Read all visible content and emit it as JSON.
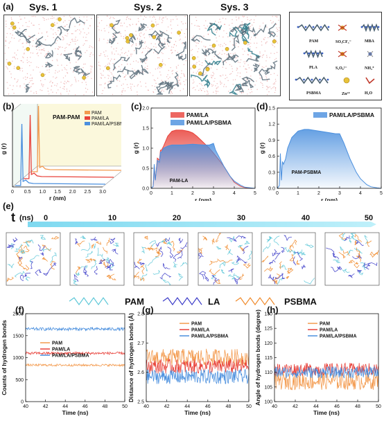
{
  "panels": {
    "a": {
      "label": "(a)",
      "systems": [
        "Sys. 1",
        "Sys. 2",
        "Sys. 3"
      ],
      "legend_items": [
        "PAM",
        "SO₃CF₃⁻",
        "MBA",
        "PLA",
        "S₂O₈²⁻",
        "NH₄⁺",
        "PSBMA",
        "Zn²⁺",
        "H₂O"
      ]
    },
    "b": {
      "label": "(b)",
      "title": "PAM-PAM",
      "legend": [
        "PAM",
        "PAM/LA",
        "PAM/LA/PSBMA"
      ],
      "xlabel": "r (nm)",
      "ylabel": "g (r)",
      "xticks": [
        "0",
        "0.5",
        "1.0",
        "1.5",
        "2.0",
        "2.5",
        "3.0"
      ]
    },
    "c": {
      "label": "(c)",
      "annotation": "PAM-LA",
      "legend": [
        "PAM/LA",
        "PAM/LA/PSBMA"
      ],
      "xlabel": "r (nm)",
      "ylabel": "g (r)"
    },
    "d": {
      "label": "(d)",
      "annotation": "PAM-PSBMA",
      "legend": [
        "PAM/LA/PSBMA"
      ],
      "xlabel": "r (nm)",
      "ylabel": "g (r)"
    },
    "e": {
      "label": "(e)",
      "t_label": "t",
      "t_unit": "(ns)",
      "times": [
        "0",
        "10",
        "20",
        "30",
        "40",
        "50"
      ],
      "legend": [
        "PAM",
        "LA",
        "PSBMA"
      ]
    },
    "f": {
      "label": "(f)",
      "legend": [
        "PAM",
        "PAM/LA",
        "PAM/LA/PSBMA"
      ],
      "xlabel": "Time (ns)",
      "ylabel": "Counts of hydrogen bonds"
    },
    "g": {
      "label": "(g)",
      "legend": [
        "PAM",
        "PAM/LA",
        "PAM/LA/PSBMA"
      ],
      "xlabel": "Time (ns)",
      "ylabel": "Distance of hydrogen bonds (Å)"
    },
    "h": {
      "label": "(h)",
      "legend": [
        "PAM",
        "PAM/LA",
        "PAM/LA/PSBMA"
      ],
      "xlabel": "Time (ns)",
      "ylabel": "Angle of hydrogen bonds (degree)"
    }
  },
  "colors": {
    "PAM": "#f39a4e",
    "PAM/LA": "#e8413a",
    "PAM/LA/PSBMA": "#4a8fde",
    "LA": "#3b3bc8",
    "PSBMA": "#f08a2a",
    "water": "#e89a9a"
  },
  "chart_data": [
    {
      "id": "c",
      "type": "area",
      "xlim": [
        0,
        5
      ],
      "ylim": [
        0,
        2.0
      ],
      "xticks": [
        0,
        1,
        2,
        3,
        4,
        5
      ],
      "yticks": [
        0.0,
        0.5,
        1.0,
        1.5,
        2.0
      ],
      "series": [
        {
          "name": "PAM/LA",
          "x": [
            0.0,
            0.1,
            0.15,
            0.2,
            0.3,
            0.4,
            0.45,
            0.5,
            0.6,
            0.8,
            1.0,
            1.2,
            1.5,
            1.8,
            2.0,
            2.2,
            2.4,
            2.6,
            2.8,
            3.0,
            3.2,
            3.5,
            3.8,
            4.0,
            4.3,
            4.5,
            4.8,
            5.0
          ],
          "values": [
            0.0,
            0.05,
            0.55,
            0.2,
            0.75,
            0.7,
            0.95,
            0.95,
            1.05,
            1.3,
            1.42,
            1.45,
            1.45,
            1.42,
            1.38,
            1.3,
            1.2,
            1.1,
            1.0,
            0.88,
            0.75,
            0.55,
            0.3,
            0.15,
            0.05,
            0.02,
            0.0,
            0.0
          ]
        },
        {
          "name": "PAM/LA/PSBMA",
          "x": [
            0.0,
            0.1,
            0.15,
            0.2,
            0.3,
            0.4,
            0.45,
            0.5,
            0.6,
            0.8,
            1.0,
            1.5,
            2.0,
            2.5,
            2.8,
            3.0,
            3.1,
            3.3,
            3.5,
            3.8,
            4.0,
            4.3,
            4.5,
            4.8,
            5.0
          ],
          "values": [
            0.0,
            0.05,
            0.6,
            0.2,
            0.7,
            0.65,
            0.9,
            0.9,
            1.0,
            1.05,
            1.08,
            1.08,
            1.1,
            1.08,
            1.08,
            1.12,
            0.95,
            0.75,
            0.55,
            0.3,
            0.18,
            0.08,
            0.03,
            0.01,
            0.0
          ]
        }
      ]
    },
    {
      "id": "d",
      "type": "area",
      "xlim": [
        0,
        5
      ],
      "ylim": [
        0,
        1.5
      ],
      "xticks": [
        0,
        1,
        2,
        3,
        4,
        5
      ],
      "yticks": [
        0.0,
        0.3,
        0.6,
        0.9,
        1.2,
        1.5
      ],
      "series": [
        {
          "name": "PAM/LA/PSBMA",
          "x": [
            0.0,
            0.1,
            0.15,
            0.2,
            0.25,
            0.3,
            0.4,
            0.5,
            0.7,
            1.0,
            1.3,
            1.5,
            2.0,
            2.5,
            2.8,
            3.0,
            3.2,
            3.5,
            3.8,
            4.0,
            4.3,
            4.5,
            4.8,
            5.0
          ],
          "values": [
            0.0,
            0.05,
            0.65,
            0.15,
            0.5,
            0.45,
            0.55,
            0.75,
            0.95,
            1.07,
            1.1,
            1.1,
            1.07,
            1.04,
            1.02,
            1.02,
            0.85,
            0.55,
            0.3,
            0.18,
            0.07,
            0.03,
            0.01,
            0.0
          ]
        }
      ]
    },
    {
      "id": "b",
      "type": "line",
      "xlim": [
        0,
        3.0
      ],
      "series": [
        {
          "name": "PAM",
          "peak_r": 0.22
        },
        {
          "name": "PAM/LA",
          "peak_r": 0.22
        },
        {
          "name": "PAM/LA/PSBMA",
          "peak_r": 0.22
        }
      ]
    },
    {
      "id": "f",
      "type": "line",
      "xlim": [
        40,
        50
      ],
      "ylim": [
        0,
        2000
      ],
      "xticks": [
        40,
        42,
        44,
        46,
        48,
        50
      ],
      "yticks": [
        0,
        500,
        1000,
        1500,
        2000
      ],
      "series": [
        {
          "name": "PAM",
          "mean": 830,
          "noise": 25
        },
        {
          "name": "PAM/LA",
          "mean": 1100,
          "noise": 30
        },
        {
          "name": "PAM/LA/PSBMA",
          "mean": 1650,
          "noise": 35
        }
      ]
    },
    {
      "id": "g",
      "type": "line",
      "xlim": [
        40,
        50
      ],
      "ylim": [
        2.5,
        2.8
      ],
      "xticks": [
        40,
        42,
        44,
        46,
        48,
        50
      ],
      "yticks": [
        2.5,
        2.6,
        2.7,
        2.8
      ],
      "series": [
        {
          "name": "PAM",
          "mean": 2.65,
          "noise": 0.03
        },
        {
          "name": "PAM/LA",
          "mean": 2.62,
          "noise": 0.025
        },
        {
          "name": "PAM/LA/PSBMA",
          "mean": 2.585,
          "noise": 0.025
        }
      ]
    },
    {
      "id": "h",
      "type": "line",
      "xlim": [
        40,
        50
      ],
      "ylim": [
        100,
        130
      ],
      "xticks": [
        40,
        42,
        44,
        46,
        48,
        50
      ],
      "yticks": [
        100,
        105,
        110,
        115,
        120,
        125,
        130
      ],
      "series": [
        {
          "name": "PAM",
          "mean": 107,
          "noise": 3
        },
        {
          "name": "PAM/LA",
          "mean": 111,
          "noise": 2.2
        },
        {
          "name": "PAM/LA/PSBMA",
          "mean": 110,
          "noise": 2
        }
      ]
    }
  ]
}
